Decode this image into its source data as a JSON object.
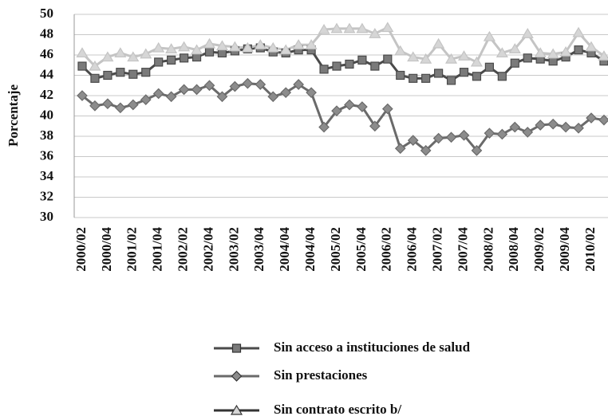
{
  "chart_data": {
    "type": "line",
    "y_label": "Porcentaje",
    "categories": [
      "2000/02",
      null,
      "2000/04",
      null,
      "2001/02",
      null,
      "2001/04",
      null,
      "2002/02",
      null,
      "2002/04",
      null,
      "2003/02",
      null,
      "2003/04",
      null,
      "2004/04",
      null,
      "2004/04",
      null,
      "2005/02",
      null,
      "2005/04",
      null,
      "2006/02",
      null,
      "2006/04",
      null,
      "2007/02",
      null,
      "2007/04",
      null,
      "2008/02",
      null,
      "2008/04",
      null,
      "2009/02",
      null,
      "2009/04",
      null,
      "2010/02",
      null
    ],
    "series": [
      {
        "name": "Sin acceso a instituciones de salud",
        "color": "#4a4a4a",
        "marker": "square",
        "marker_color": "#7a7a7a",
        "values": [
          44.9,
          43.7,
          44.0,
          44.3,
          44.1,
          44.3,
          45.3,
          45.5,
          45.7,
          45.8,
          46.3,
          46.2,
          46.4,
          46.6,
          46.7,
          46.3,
          46.2,
          46.5,
          46.5,
          44.6,
          44.9,
          45.1,
          45.5,
          44.9,
          45.6,
          44.0,
          43.7,
          43.7,
          44.2,
          43.5,
          44.3,
          43.9,
          44.8,
          43.9,
          45.2,
          45.7,
          45.6,
          45.4,
          45.8,
          46.5,
          46.2,
          45.4
        ]
      },
      {
        "name": "Sin prestaciones",
        "color": "#6a6a6a",
        "marker": "diamond",
        "marker_color": "#8c8c8c",
        "values": [
          42.0,
          41.0,
          41.2,
          40.8,
          41.1,
          41.6,
          42.2,
          41.9,
          42.6,
          42.6,
          43.0,
          41.9,
          42.9,
          43.2,
          43.1,
          41.9,
          42.3,
          43.1,
          42.3,
          38.9,
          40.5,
          41.1,
          40.9,
          39.0,
          40.7,
          36.8,
          37.6,
          36.6,
          37.8,
          37.9,
          38.1,
          36.6,
          38.3,
          38.2,
          38.9,
          38.4,
          39.1,
          39.2,
          38.9,
          38.8,
          39.8,
          39.6
        ]
      },
      {
        "name": "Sin contrato escrito b/",
        "color": "#c4c4c4",
        "marker": "triangle",
        "marker_color": "#d6d6d6",
        "values": [
          46.2,
          44.9,
          45.8,
          46.2,
          45.8,
          46.1,
          46.7,
          46.6,
          46.8,
          46.5,
          47.1,
          46.9,
          46.8,
          46.7,
          47.0,
          46.7,
          46.5,
          47.0,
          47.0,
          48.5,
          48.6,
          48.6,
          48.6,
          48.1,
          48.7,
          46.4,
          45.8,
          45.6,
          47.1,
          45.6,
          45.9,
          45.3,
          47.8,
          46.2,
          46.6,
          48.1,
          46.2,
          46.1,
          46.3,
          48.2,
          46.8,
          45.9
        ]
      }
    ],
    "ylim": [
      30,
      50
    ],
    "yticks": [
      30,
      32,
      34,
      36,
      38,
      40,
      42,
      44,
      46,
      48,
      50
    ],
    "grid": true,
    "legend": "bottom"
  }
}
